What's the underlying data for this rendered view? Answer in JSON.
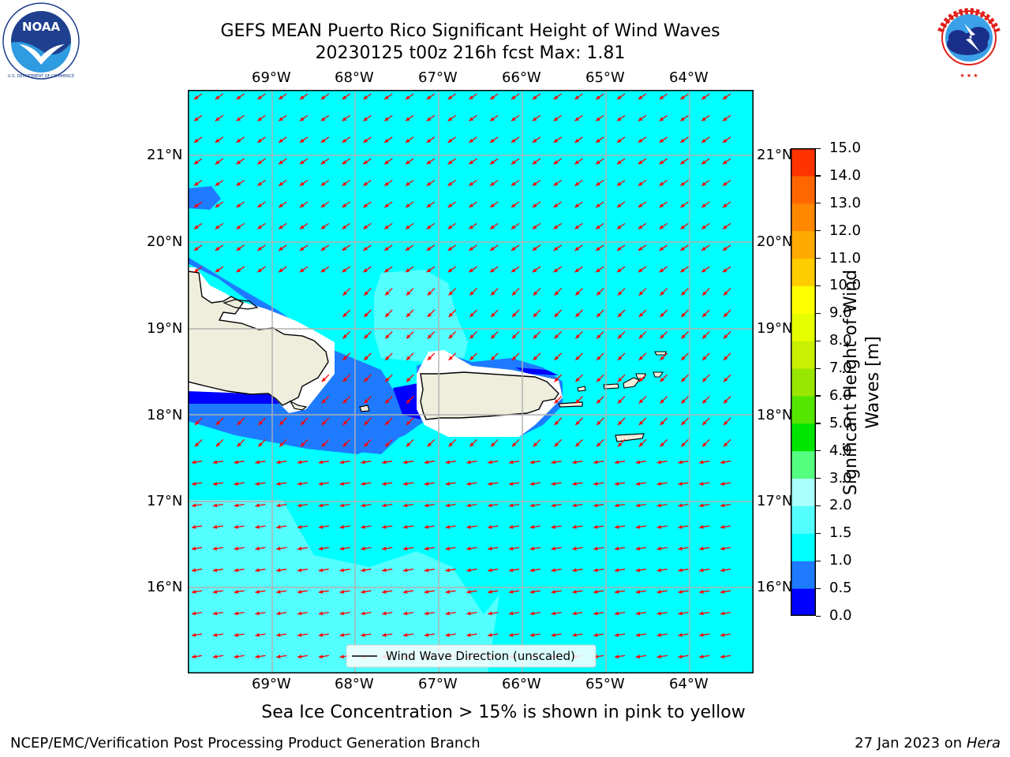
{
  "title": {
    "line1": "GEFS MEAN Puerto Rico Significant Height of Wind Waves",
    "line2": "20230125 t00z 216h fcst   Max: 1.81"
  },
  "logos": {
    "left": {
      "name": "noaa-logo",
      "text": "NOAA",
      "ring_text": "NATIONAL OCEANIC AND ATMOSPHERIC ADMINISTRATION · U.S. DEPARTMENT OF COMMERCE"
    },
    "right": {
      "name": "nws-logo",
      "ring_text": "NATIONAL WEATHER SERVICE"
    }
  },
  "map": {
    "lon_labels": [
      "69°W",
      "68°W",
      "67°W",
      "66°W",
      "65°W",
      "64°W"
    ],
    "lat_labels": [
      "21°N",
      "20°N",
      "19°N",
      "18°N",
      "17°N",
      "16°N"
    ],
    "legend": "Wind Wave Direction (unscaled)",
    "vector_color": "#ff0000",
    "land_color": "#efeedd"
  },
  "colorbar": {
    "label_line1": "Significant Height of Wind",
    "label_line2": "Waves [m]",
    "ticks": [
      "0.0",
      "0.5",
      "1.0",
      "1.5",
      "2.0",
      "3.0",
      "4.0",
      "5.0",
      "6.0",
      "7.0",
      "8.0",
      "9.0",
      "10.0",
      "11.0",
      "12.0",
      "13.0",
      "14.0",
      "15.0"
    ],
    "colors": [
      "#0000ff",
      "#1e7bff",
      "#00ffff",
      "#54ffff",
      "#aaffff",
      "#55ff7f",
      "#00e600",
      "#55e600",
      "#99e600",
      "#c8f000",
      "#e6ff00",
      "#ffff00",
      "#ffcc00",
      "#ffaa00",
      "#ff8800",
      "#ff6600",
      "#ff3300",
      "#ff0000"
    ]
  },
  "bottom_note": "Sea Ice Concentration > 15% is shown in pink to yellow",
  "footer": {
    "left": "NCEP/EMC/Verification Post Processing Product Generation Branch",
    "right_prefix": "27 Jan 2023 on ",
    "right_machine": "Hera"
  }
}
